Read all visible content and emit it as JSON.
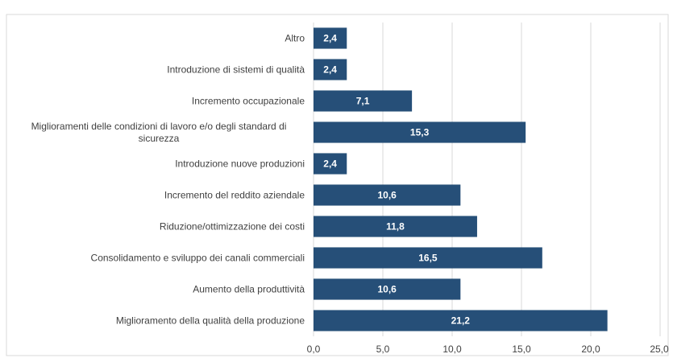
{
  "chart_data": {
    "type": "barh",
    "categories": [
      "Altro",
      "Introduzione di sistemi di qualità",
      "Incremento occupazionale",
      "Miglioramenti delle condizioni di lavoro e/o degli standard di sicurezza",
      "Introduzione nuove produzioni",
      "Incremento del reddito aziendale",
      "Riduzione/ottimizzazione dei costi",
      "Consolidamento e sviluppo dei canali commerciali",
      "Aumento della produttività",
      "Miglioramento della qualità della produzione"
    ],
    "values": [
      2.4,
      2.4,
      7.1,
      15.3,
      2.4,
      10.6,
      11.8,
      16.5,
      10.6,
      21.2
    ],
    "value_labels": [
      "2,4",
      "2,4",
      "7,1",
      "15,3",
      "2,4",
      "10,6",
      "11,8",
      "16,5",
      "10,6",
      "21,2"
    ],
    "color": "#264f78",
    "xlim": [
      0,
      25
    ],
    "xticks": [
      {
        "value": 0,
        "label": "0,0"
      },
      {
        "value": 5,
        "label": "5,0"
      },
      {
        "value": 10,
        "label": "10,0"
      },
      {
        "value": 15,
        "label": "15,0"
      },
      {
        "value": 20,
        "label": "20,0"
      },
      {
        "value": 25,
        "label": "25,0"
      }
    ],
    "grid": true
  }
}
